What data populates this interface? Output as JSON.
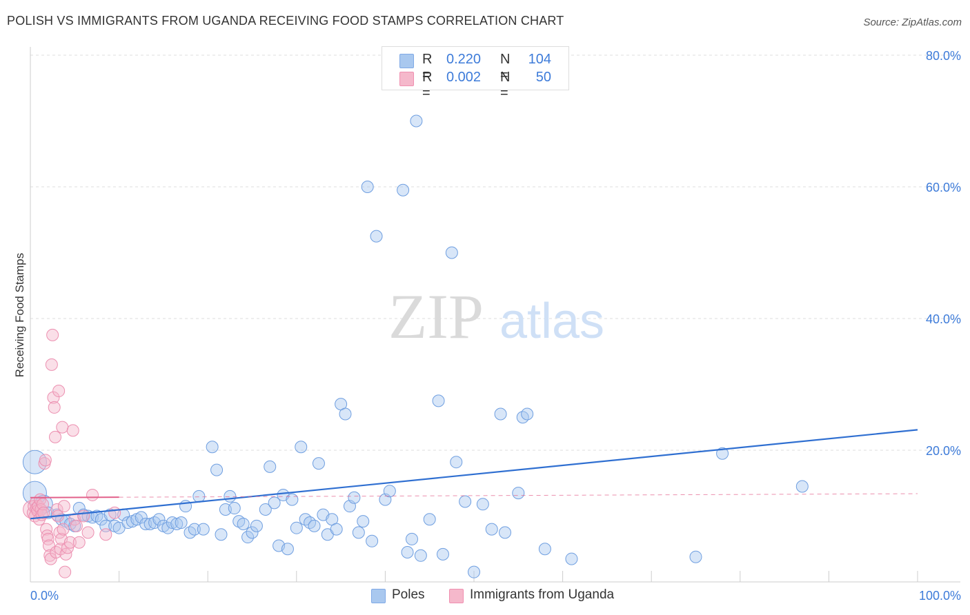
{
  "title": "POLISH VS IMMIGRANTS FROM UGANDA RECEIVING FOOD STAMPS CORRELATION CHART",
  "source": "Source: ZipAtlas.com",
  "watermark": {
    "zip": "ZIP",
    "atlas": "atlas"
  },
  "legend": {
    "rows": [
      {
        "r_label": "R =",
        "r_value": "0.220",
        "n_label": "N =",
        "n_value": "104",
        "color": "#a9c8ef"
      },
      {
        "r_label": "R =",
        "r_value": "0.002",
        "n_label": "N =",
        "n_value": "50",
        "color": "#f5b8cb"
      }
    ]
  },
  "chart_data": {
    "type": "scatter",
    "title": "POLISH VS IMMIGRANTS FROM UGANDA RECEIVING FOOD STAMPS CORRELATION CHART",
    "xlabel": "",
    "ylabel": "Receiving Food Stamps",
    "xlim": [
      0,
      100
    ],
    "ylim": [
      0,
      80
    ],
    "x_tick_labels": [
      "0.0%",
      "100.0%"
    ],
    "y_tick_labels": [
      "20.0%",
      "40.0%",
      "60.0%",
      "80.0%"
    ],
    "y_ticks": [
      20,
      40,
      60,
      80
    ],
    "grid": true,
    "legend_position": "bottom-center",
    "series": [
      {
        "name": "Poles",
        "color": "#7fa9e6",
        "line_color": "#2f6fd1",
        "trend": {
          "x": [
            0,
            100
          ],
          "y": [
            9.6,
            23.1
          ]
        },
        "points": [
          [
            0.5,
            18.2,
            3
          ],
          [
            0.5,
            13.5,
            3
          ],
          [
            1.5,
            11.8,
            2
          ],
          [
            2,
            10.5,
            1
          ],
          [
            3,
            10.2,
            1
          ],
          [
            3.5,
            9.5,
            1
          ],
          [
            4,
            9.2,
            1
          ],
          [
            4.5,
            8.8,
            1
          ],
          [
            5,
            8.5,
            1
          ],
          [
            5.5,
            11.2,
            1
          ],
          [
            6,
            10.2,
            1
          ],
          [
            6.5,
            10,
            1
          ],
          [
            7,
            9.8,
            1
          ],
          [
            7.5,
            10,
            1
          ],
          [
            8,
            9.5,
            1
          ],
          [
            8.5,
            8.5,
            1
          ],
          [
            9,
            10.2,
            1
          ],
          [
            9.5,
            8.5,
            1
          ],
          [
            10,
            8.2,
            1
          ],
          [
            10.5,
            10.2,
            1
          ],
          [
            11,
            9,
            1
          ],
          [
            11.5,
            9.2,
            1
          ],
          [
            12,
            9.5,
            1
          ],
          [
            12.5,
            9.8,
            1
          ],
          [
            13,
            8.8,
            1
          ],
          [
            13.5,
            8.8,
            1
          ],
          [
            14,
            9,
            1
          ],
          [
            14.5,
            9.5,
            1
          ],
          [
            15,
            8.5,
            1
          ],
          [
            15.5,
            8.2,
            1
          ],
          [
            16,
            9,
            1
          ],
          [
            16.5,
            8.8,
            1
          ],
          [
            17,
            9,
            1
          ],
          [
            17.5,
            11.5,
            1
          ],
          [
            18,
            7.5,
            1
          ],
          [
            18.5,
            8,
            1
          ],
          [
            19,
            13,
            1
          ],
          [
            19.5,
            8,
            1
          ],
          [
            20.5,
            20.5,
            1
          ],
          [
            21,
            17,
            1
          ],
          [
            21.5,
            7.2,
            1
          ],
          [
            22,
            11,
            1
          ],
          [
            22.5,
            13,
            1
          ],
          [
            23,
            11.2,
            1
          ],
          [
            23.5,
            9.2,
            1
          ],
          [
            24,
            8.8,
            1
          ],
          [
            24.5,
            6.8,
            1
          ],
          [
            25,
            7.5,
            1
          ],
          [
            25.5,
            8.5,
            1
          ],
          [
            26.5,
            11,
            1
          ],
          [
            27,
            17.5,
            1
          ],
          [
            27.5,
            12,
            1
          ],
          [
            28,
            5.5,
            1
          ],
          [
            28.5,
            13.2,
            1
          ],
          [
            29,
            5,
            1
          ],
          [
            29.5,
            12.5,
            1
          ],
          [
            30,
            8.2,
            1
          ],
          [
            30.5,
            20.5,
            1
          ],
          [
            31,
            9.5,
            1
          ],
          [
            31.5,
            9,
            1
          ],
          [
            32,
            8.5,
            1
          ],
          [
            32.5,
            18,
            1
          ],
          [
            33,
            10.2,
            1
          ],
          [
            33.5,
            7.2,
            1
          ],
          [
            34,
            9.5,
            1
          ],
          [
            34.5,
            8,
            1
          ],
          [
            35,
            27,
            1
          ],
          [
            35.5,
            25.5,
            1
          ],
          [
            36,
            11.5,
            1
          ],
          [
            36.5,
            12.8,
            1
          ],
          [
            37,
            7.5,
            1
          ],
          [
            37.5,
            9.2,
            1
          ],
          [
            38,
            60,
            1
          ],
          [
            38.5,
            6.2,
            1
          ],
          [
            39,
            52.5,
            1
          ],
          [
            40,
            12.5,
            1
          ],
          [
            40.5,
            13.8,
            1
          ],
          [
            42,
            59.5,
            1
          ],
          [
            42.5,
            4.5,
            1
          ],
          [
            43,
            6.5,
            1
          ],
          [
            43.5,
            70,
            1
          ],
          [
            44,
            4,
            1
          ],
          [
            45,
            9.5,
            1
          ],
          [
            46,
            27.5,
            1
          ],
          [
            46.5,
            4.2,
            1
          ],
          [
            47.5,
            50,
            1
          ],
          [
            48,
            18.2,
            1
          ],
          [
            49,
            12.2,
            1
          ],
          [
            50,
            1.5,
            1
          ],
          [
            51,
            11.8,
            1
          ],
          [
            52,
            8,
            1
          ],
          [
            53,
            25.5,
            1
          ],
          [
            53.5,
            7.5,
            1
          ],
          [
            55,
            13.5,
            1
          ],
          [
            55.5,
            25,
            1
          ],
          [
            56,
            25.5,
            1
          ],
          [
            58,
            5,
            1
          ],
          [
            61,
            3.5,
            1
          ],
          [
            75,
            3.8,
            1
          ],
          [
            78,
            19.5,
            1
          ],
          [
            87,
            14.5,
            1
          ]
        ]
      },
      {
        "name": "Immigrants from Uganda",
        "color": "#f3a3bd",
        "line_color": "#e2608a",
        "trend": {
          "x": [
            0,
            100
          ],
          "y": [
            12.8,
            13.4
          ]
        },
        "points": [
          [
            0.2,
            11,
            2
          ],
          [
            0.3,
            10.5,
            1
          ],
          [
            0.4,
            11.5,
            1
          ],
          [
            0.5,
            10,
            1
          ],
          [
            0.6,
            12,
            1
          ],
          [
            0.7,
            11.2,
            1
          ],
          [
            0.8,
            10.8,
            1
          ],
          [
            0.9,
            11.5,
            1
          ],
          [
            1,
            9.5,
            1
          ],
          [
            1.1,
            12.5,
            1
          ],
          [
            1.2,
            11,
            1
          ],
          [
            1.3,
            10.2,
            1
          ],
          [
            1.4,
            11.8,
            1
          ],
          [
            1.5,
            10.5,
            1
          ],
          [
            1.6,
            18,
            1
          ],
          [
            1.7,
            18.5,
            1
          ],
          [
            1.8,
            8,
            1
          ],
          [
            1.9,
            7,
            1
          ],
          [
            2,
            6.5,
            1
          ],
          [
            2.1,
            5.5,
            1
          ],
          [
            2.2,
            4,
            1
          ],
          [
            2.3,
            3.5,
            1
          ],
          [
            2.4,
            33,
            1
          ],
          [
            2.5,
            37.5,
            1
          ],
          [
            2.6,
            28,
            1
          ],
          [
            2.7,
            26.5,
            1
          ],
          [
            2.8,
            22,
            1
          ],
          [
            2.9,
            4.5,
            1
          ],
          [
            3,
            11,
            1
          ],
          [
            3.1,
            10,
            1
          ],
          [
            3.2,
            29,
            1
          ],
          [
            3.3,
            7.5,
            1
          ],
          [
            3.4,
            5,
            1
          ],
          [
            3.5,
            6.5,
            1
          ],
          [
            3.6,
            23.5,
            1
          ],
          [
            3.7,
            8,
            1
          ],
          [
            3.8,
            11.5,
            1
          ],
          [
            3.9,
            1.5,
            1
          ],
          [
            4,
            4.2,
            1
          ],
          [
            4.2,
            5.2,
            1
          ],
          [
            4.5,
            6,
            1
          ],
          [
            4.8,
            23,
            1
          ],
          [
            5,
            9.5,
            1
          ],
          [
            5.2,
            8.5,
            1
          ],
          [
            5.5,
            6,
            1
          ],
          [
            6,
            10,
            1
          ],
          [
            6.5,
            7.5,
            1
          ],
          [
            7,
            13.2,
            1
          ],
          [
            8.5,
            7.2,
            1
          ],
          [
            9.5,
            10.5,
            1
          ]
        ]
      }
    ]
  },
  "bottom_legend": [
    {
      "label": "Poles",
      "color": "#a9c8ef"
    },
    {
      "label": "Immigrants from Uganda",
      "color": "#f5b8cb"
    }
  ]
}
